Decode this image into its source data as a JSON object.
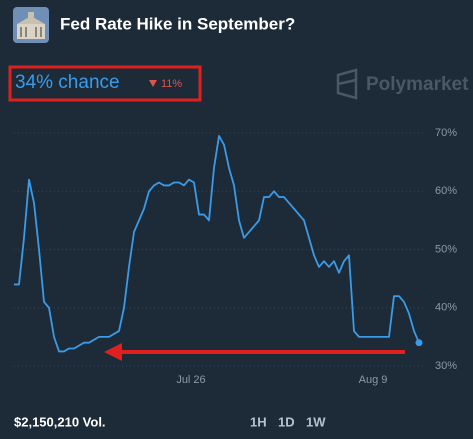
{
  "header": {
    "title": "Fed Rate Hike in September?",
    "chance": "34% chance",
    "change": "11%",
    "brand": "Polymarket"
  },
  "chart_data": {
    "type": "line",
    "color": "#3a9be8",
    "grid": true,
    "values": [
      44,
      44,
      52,
      62,
      58,
      50,
      41,
      40,
      35,
      32.5,
      32.5,
      33,
      33,
      33.5,
      34,
      34,
      34.5,
      35,
      35,
      35,
      35.5,
      36,
      40,
      47,
      53,
      55,
      57,
      60,
      61,
      61.5,
      61,
      61,
      61.5,
      61.5,
      61,
      62,
      61.5,
      56,
      56,
      55,
      64,
      69.5,
      68,
      64,
      61,
      55,
      52,
      53,
      54,
      55,
      59,
      59,
      60,
      59,
      59,
      58,
      57,
      56,
      55,
      52,
      49,
      47,
      48,
      47,
      48,
      46,
      48,
      49,
      36,
      35,
      35,
      35,
      35,
      35,
      35,
      35,
      42,
      42,
      41,
      39,
      36,
      34
    ],
    "xlim": [
      0,
      81
    ],
    "xticks": [
      {
        "value": 35.4,
        "label": "Jul 26"
      },
      {
        "value": 71.8,
        "label": "Aug 9"
      }
    ],
    "ylim": [
      30,
      70
    ],
    "yticks": [
      {
        "value": 70,
        "label": "70%"
      },
      {
        "value": 60,
        "label": "60%"
      },
      {
        "value": 50,
        "label": "50%"
      },
      {
        "value": 40,
        "label": "40%"
      },
      {
        "value": 30,
        "label": "30%"
      }
    ]
  },
  "footer": {
    "volume": "$2,150,210 Vol.",
    "ranges": [
      "1H",
      "1D",
      "1W"
    ]
  }
}
